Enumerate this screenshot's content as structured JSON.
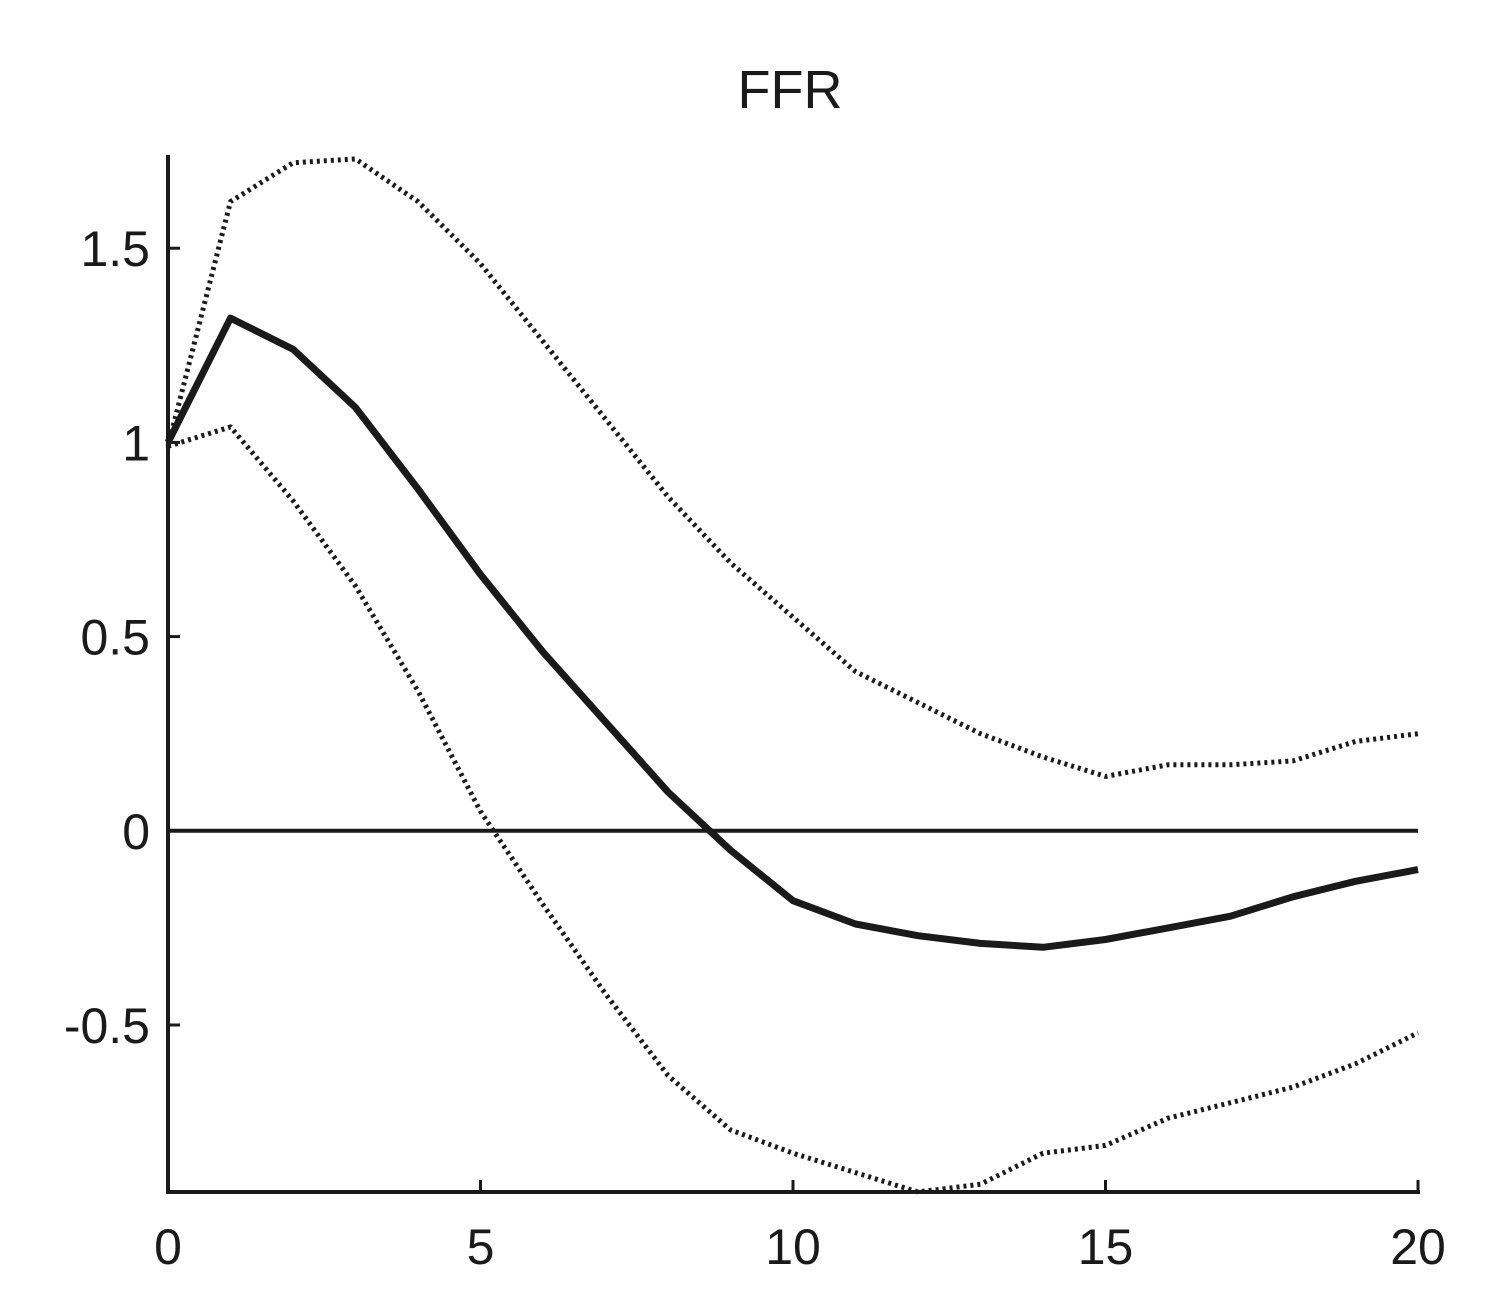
{
  "chart_data": {
    "type": "line",
    "title": "FFR",
    "xlabel": "",
    "ylabel": "",
    "xlim": [
      0,
      20
    ],
    "ylim": [
      -0.93,
      1.74
    ],
    "x_ticks": [
      "0",
      "5",
      "10",
      "15",
      "20"
    ],
    "y_ticks": [
      "1.5",
      "1",
      "0.5",
      "0",
      "-0.5"
    ],
    "grid": false,
    "legend": "none",
    "colors": {
      "line": "#1a1a1a",
      "bands": "#1a1a1a",
      "zero_line": "#1a1a1a"
    },
    "x": [
      0,
      1,
      2,
      3,
      4,
      5,
      6,
      7,
      8,
      9,
      10,
      11,
      12,
      13,
      14,
      15,
      16,
      17,
      18,
      19,
      20
    ],
    "series": [
      {
        "role": "estimate",
        "style": "solid",
        "values": [
          1.0,
          1.32,
          1.24,
          1.09,
          0.88,
          0.66,
          0.46,
          0.28,
          0.1,
          -0.05,
          -0.18,
          -0.24,
          -0.27,
          -0.29,
          -0.3,
          -0.28,
          -0.25,
          -0.22,
          -0.17,
          -0.13,
          -0.1
        ]
      },
      {
        "role": "upper band",
        "style": "dotted",
        "values": [
          0.99,
          1.62,
          1.72,
          1.73,
          1.62,
          1.46,
          1.26,
          1.06,
          0.86,
          0.69,
          0.55,
          0.41,
          0.33,
          0.25,
          0.19,
          0.14,
          0.17,
          0.17,
          0.18,
          0.23,
          0.25
        ]
      },
      {
        "role": "lower band",
        "style": "dotted",
        "values": [
          0.99,
          1.04,
          0.85,
          0.63,
          0.36,
          0.05,
          -0.19,
          -0.42,
          -0.63,
          -0.77,
          -0.83,
          -0.88,
          -0.93,
          -0.91,
          -0.83,
          -0.81,
          -0.74,
          -0.7,
          -0.66,
          -0.6,
          -0.52
        ]
      }
    ]
  }
}
